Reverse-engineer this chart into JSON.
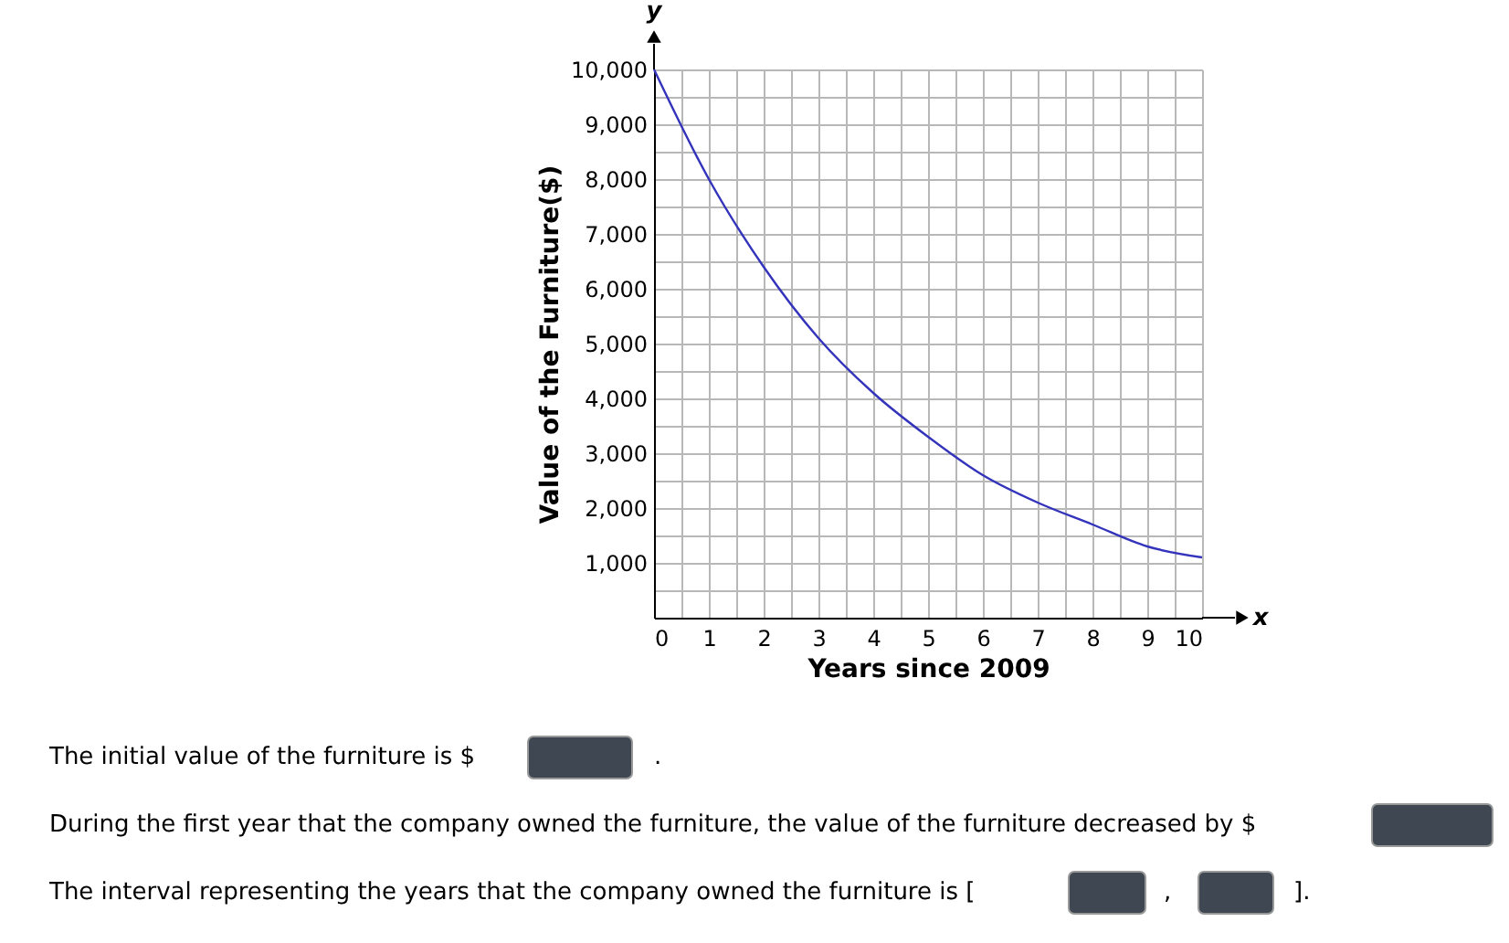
{
  "chart_data": {
    "type": "line",
    "xlabel": "Years since 2009",
    "ylabel": "Value of the Furniture($)",
    "x": [
      0,
      1,
      2,
      3,
      4,
      5,
      6,
      7,
      8,
      9,
      10
    ],
    "series": [
      {
        "color": "#3333bb",
        "values": [
          10000,
          8000,
          6400,
          5100,
          4100,
          3300,
          2600,
          2100,
          1700,
          1300,
          1100
        ]
      }
    ],
    "xlim": [
      0,
      10
    ],
    "ylim": [
      0,
      10000
    ],
    "xticks": [
      0,
      {
        "value": 0.5,
        "label": null
      },
      1,
      {
        "value": 1.5,
        "label": null
      },
      2,
      {
        "value": 2.5,
        "label": null
      },
      3,
      {
        "value": 3.5,
        "label": null
      },
      4,
      {
        "value": 4.5,
        "label": null
      },
      5,
      {
        "value": 5.5,
        "label": null
      },
      6,
      {
        "value": 6.5,
        "label": null
      },
      7,
      {
        "value": 7.5,
        "label": null
      },
      8,
      {
        "value": 8.5,
        "label": null
      },
      9,
      {
        "value": 9.5,
        "label": null
      },
      10
    ],
    "yticks": [
      {
        "value": 0,
        "label": null
      },
      {
        "value": 500,
        "label": null
      },
      {
        "value": 1000,
        "label": "1,000"
      },
      {
        "value": 1500,
        "label": null
      },
      {
        "value": 2000,
        "label": "2,000"
      },
      {
        "value": 2500,
        "label": null
      },
      {
        "value": 3000,
        "label": "3,000"
      },
      {
        "value": 3500,
        "label": null
      },
      {
        "value": 4000,
        "label": "4,000"
      },
      {
        "value": 4500,
        "label": null
      },
      {
        "value": 5000,
        "label": "5,000"
      },
      {
        "value": 5500,
        "label": null
      },
      {
        "value": 6000,
        "label": "6,000"
      },
      {
        "value": 6500,
        "label": null
      },
      {
        "value": 7000,
        "label": "7,000"
      },
      {
        "value": 7500,
        "label": null
      },
      {
        "value": 8000,
        "label": "8,000"
      },
      {
        "value": 8500,
        "label": null
      },
      {
        "value": 9000,
        "label": "9,000"
      },
      {
        "value": 9500,
        "label": null
      },
      {
        "value": 10000,
        "label": "10,000"
      }
    ],
    "grid": true,
    "marker": "none",
    "line_style": "solid",
    "legend": false,
    "annotations": [
      "x",
      "y",
      "The initial value of the furniture is $",
      ".",
      "During the first year that the company owned the furniture, the value of the furniture decreased by $",
      "The interval representing the years that the company owned the furniture is [",
      ",",
      "]."
    ]
  }
}
